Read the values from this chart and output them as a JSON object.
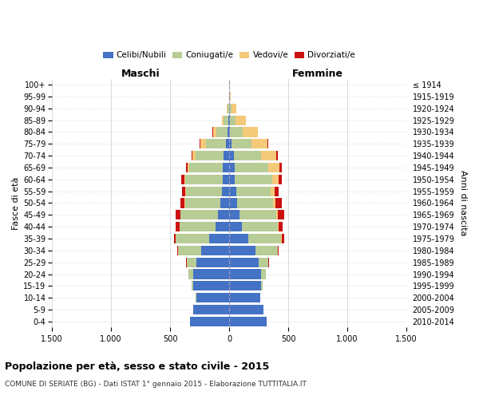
{
  "age_groups": [
    "100+",
    "95-99",
    "90-94",
    "85-89",
    "80-84",
    "75-79",
    "70-74",
    "65-69",
    "60-64",
    "55-59",
    "50-54",
    "45-49",
    "40-44",
    "35-39",
    "30-34",
    "25-29",
    "20-24",
    "15-19",
    "10-14",
    "5-9",
    "0-4"
  ],
  "birth_years": [
    "≤ 1914",
    "1915-1919",
    "1920-1924",
    "1925-1929",
    "1930-1934",
    "1935-1939",
    "1940-1944",
    "1945-1949",
    "1950-1954",
    "1955-1959",
    "1960-1964",
    "1965-1969",
    "1970-1974",
    "1975-1979",
    "1980-1984",
    "1985-1989",
    "1990-1994",
    "1995-1999",
    "2000-2004",
    "2005-2009",
    "2010-2014"
  ],
  "maschi_celibi": [
    0,
    0,
    2,
    5,
    15,
    28,
    48,
    52,
    55,
    58,
    75,
    95,
    115,
    170,
    240,
    280,
    305,
    305,
    280,
    305,
    330
  ],
  "maschi_coniugati": [
    1,
    2,
    12,
    42,
    95,
    170,
    235,
    285,
    315,
    305,
    300,
    315,
    305,
    280,
    190,
    82,
    42,
    15,
    4,
    2,
    0
  ],
  "maschi_vedovi": [
    0,
    1,
    4,
    12,
    28,
    48,
    25,
    15,
    12,
    8,
    6,
    4,
    2,
    1,
    1,
    0,
    0,
    0,
    0,
    0,
    0
  ],
  "maschi_divorziati": [
    0,
    0,
    0,
    1,
    2,
    4,
    9,
    13,
    22,
    28,
    32,
    38,
    32,
    18,
    8,
    4,
    1,
    0,
    0,
    0,
    0
  ],
  "femmine_nubili": [
    0,
    0,
    2,
    4,
    9,
    18,
    38,
    48,
    50,
    60,
    70,
    85,
    105,
    160,
    220,
    250,
    270,
    270,
    260,
    290,
    315
  ],
  "femmine_coniugate": [
    2,
    4,
    18,
    50,
    105,
    170,
    235,
    285,
    315,
    290,
    300,
    315,
    305,
    280,
    190,
    82,
    42,
    15,
    4,
    2,
    0
  ],
  "femmine_vedove": [
    2,
    7,
    38,
    88,
    128,
    135,
    125,
    95,
    55,
    35,
    25,
    15,
    8,
    3,
    1,
    0,
    0,
    0,
    0,
    0,
    0
  ],
  "femmine_divorziate": [
    0,
    0,
    1,
    2,
    4,
    8,
    12,
    18,
    27,
    32,
    48,
    48,
    36,
    22,
    8,
    3,
    1,
    0,
    0,
    0,
    0
  ],
  "color_celibe": "#4472C4",
  "color_coniugato": "#B8CC96",
  "color_vedovo": "#F5C97A",
  "color_divorziato": "#CC1111",
  "xlim": 1500,
  "title": "Popolazione per età, sesso e stato civile - 2015",
  "subtitle": "COMUNE DI SERIATE (BG) - Dati ISTAT 1° gennaio 2015 - Elaborazione TUTTITALIA.IT",
  "ylabel_left": "Fasce di età",
  "ylabel_right": "Anni di nascita",
  "xlabel_maschi": "Maschi",
  "xlabel_femmine": "Femmine",
  "xtick_labels": [
    "1.500",
    "1.000",
    "500",
    "0",
    "500",
    "1.000",
    "1.500"
  ]
}
